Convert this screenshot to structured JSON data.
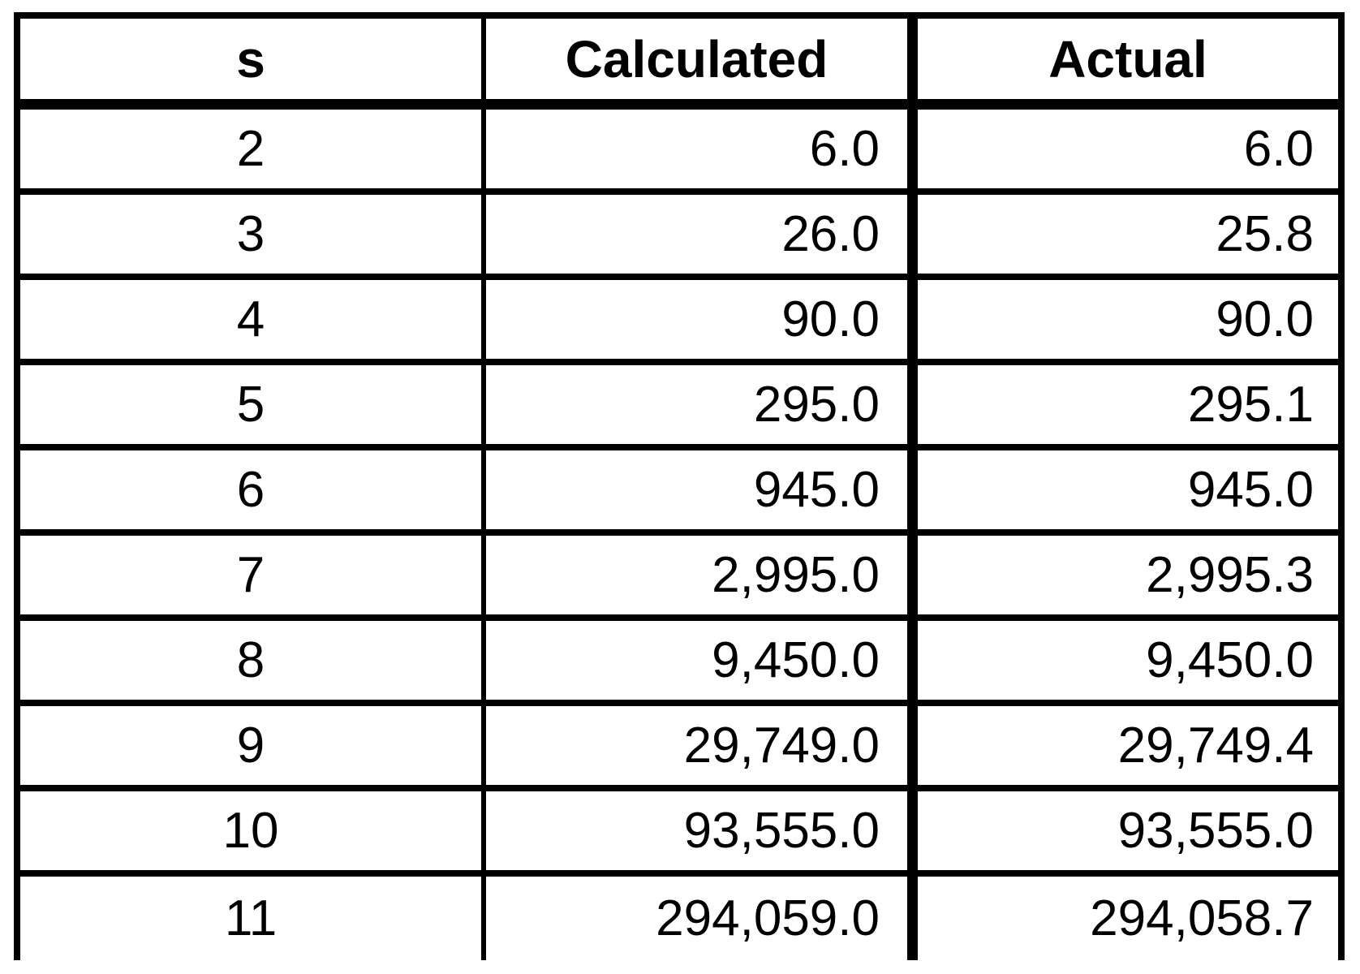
{
  "table": {
    "columns": [
      {
        "label": "s"
      },
      {
        "label": "Calculated"
      },
      {
        "label": "Actual"
      }
    ],
    "rows": [
      {
        "s": "2",
        "calculated": "6.0",
        "actual": "6.0"
      },
      {
        "s": "3",
        "calculated": "26.0",
        "actual": "25.8"
      },
      {
        "s": "4",
        "calculated": "90.0",
        "actual": "90.0"
      },
      {
        "s": "5",
        "calculated": "295.0",
        "actual": "295.1"
      },
      {
        "s": "6",
        "calculated": "945.0",
        "actual": "945.0"
      },
      {
        "s": "7",
        "calculated": "2,995.0",
        "actual": "2,995.3"
      },
      {
        "s": "8",
        "calculated": "9,450.0",
        "actual": "9,450.0"
      },
      {
        "s": "9",
        "calculated": "29,749.0",
        "actual": "29,749.4"
      },
      {
        "s": "10",
        "calculated": "93,555.0",
        "actual": "93,555.0"
      },
      {
        "s": "11",
        "calculated": "294,059.0",
        "actual": "294,058.7"
      }
    ]
  },
  "colors": {
    "border": "#000000",
    "text": "#000000",
    "background": "#ffffff"
  }
}
